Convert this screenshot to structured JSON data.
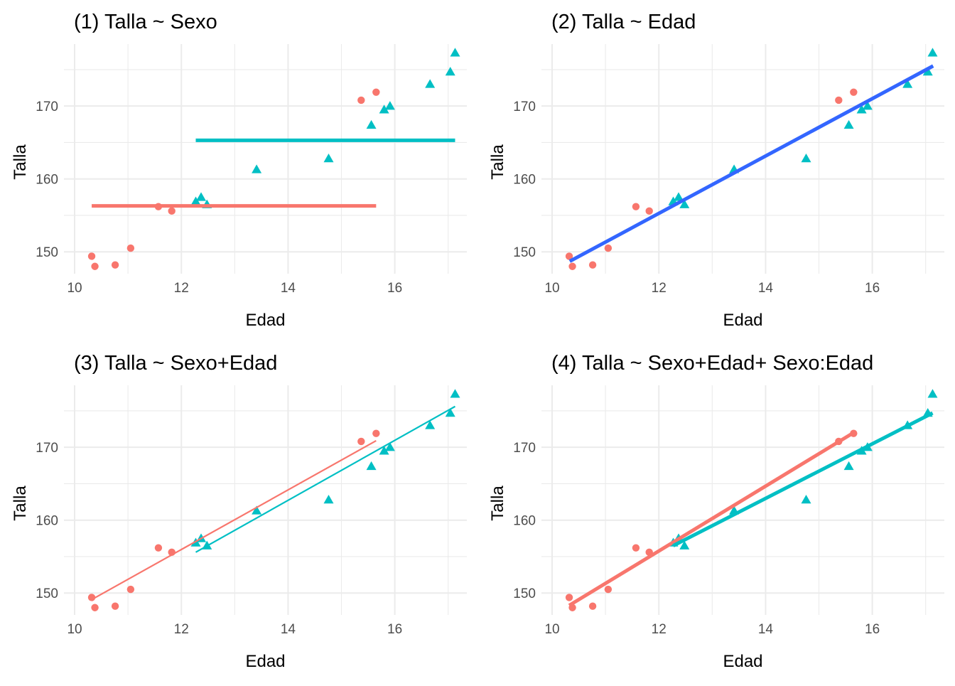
{
  "colors": {
    "female": "#F8766D",
    "male": "#00BFC4",
    "overall": "#3366FF",
    "grid": "#EBEBEB",
    "tick_text": "#4D4D4D",
    "title_text": "#000000"
  },
  "points": {
    "female": [
      [
        10.32,
        149.4
      ],
      [
        10.38,
        148.0
      ],
      [
        10.76,
        148.2
      ],
      [
        11.05,
        150.5
      ],
      [
        11.57,
        156.2
      ],
      [
        11.82,
        155.6
      ],
      [
        15.37,
        170.8
      ],
      [
        15.65,
        171.9
      ]
    ],
    "male": [
      [
        12.27,
        156.9
      ],
      [
        12.37,
        157.5
      ],
      [
        12.48,
        156.5
      ],
      [
        13.41,
        161.3
      ],
      [
        14.76,
        162.8
      ],
      [
        15.56,
        167.4
      ],
      [
        15.8,
        169.5
      ],
      [
        15.91,
        170.0
      ],
      [
        16.66,
        173.0
      ],
      [
        17.04,
        174.7
      ],
      [
        17.13,
        177.3
      ]
    ]
  },
  "chart_data": [
    {
      "type": "scatter",
      "title": "(1) Talla ~ Sexo",
      "xlabel": "Edad",
      "ylabel": "Talla",
      "xlim": [
        9.8,
        17.35
      ],
      "ylim": [
        147.0,
        178.5
      ],
      "xticks": [
        10,
        12,
        14,
        16
      ],
      "yticks": [
        150,
        160,
        170
      ],
      "grid": true,
      "legend": "none",
      "fit_lines": [
        {
          "group": "female",
          "x": [
            10.32,
            15.65
          ],
          "y": [
            156.3,
            156.3
          ],
          "width": "thick"
        },
        {
          "group": "male",
          "x": [
            12.27,
            17.13
          ],
          "y": [
            165.3,
            165.3
          ],
          "width": "thick"
        }
      ]
    },
    {
      "type": "scatter",
      "title": "(2) Talla ~ Edad",
      "xlabel": "Edad",
      "ylabel": "Talla",
      "xlim": [
        9.8,
        17.35
      ],
      "ylim": [
        147.0,
        178.5
      ],
      "xticks": [
        10,
        12,
        14,
        16
      ],
      "yticks": [
        150,
        160,
        170
      ],
      "grid": true,
      "legend": "none",
      "fit_lines": [
        {
          "group": "overall",
          "x": [
            10.33,
            17.14
          ],
          "y": [
            148.7,
            175.5
          ],
          "width": "thick"
        }
      ]
    },
    {
      "type": "scatter",
      "title": "(3) Talla ~ Sexo+Edad",
      "xlabel": "Edad",
      "ylabel": "Talla",
      "xlim": [
        9.8,
        17.35
      ],
      "ylim": [
        147.0,
        178.5
      ],
      "xticks": [
        10,
        12,
        14,
        16
      ],
      "yticks": [
        150,
        160,
        170
      ],
      "grid": true,
      "legend": "none",
      "fit_lines": [
        {
          "group": "female",
          "x": [
            10.32,
            15.65
          ],
          "y": [
            149.1,
            170.9
          ],
          "width": "thin"
        },
        {
          "group": "male",
          "x": [
            12.27,
            17.13
          ],
          "y": [
            155.6,
            175.6
          ],
          "width": "thin"
        }
      ]
    },
    {
      "type": "scatter",
      "title": "(4) Talla ~ Sexo+Edad+ Sexo:Edad",
      "xlabel": "Edad",
      "ylabel": "Talla",
      "xlim": [
        9.8,
        17.35
      ],
      "ylim": [
        147.0,
        178.5
      ],
      "xticks": [
        10,
        12,
        14,
        16
      ],
      "yticks": [
        150,
        160,
        170
      ],
      "grid": true,
      "legend": "none",
      "fit_lines": [
        {
          "group": "female",
          "x": [
            10.32,
            15.65
          ],
          "y": [
            148.3,
            172.0
          ],
          "width": "thick"
        },
        {
          "group": "male",
          "x": [
            12.27,
            17.13
          ],
          "y": [
            156.5,
            174.7
          ],
          "width": "thick"
        }
      ]
    }
  ]
}
